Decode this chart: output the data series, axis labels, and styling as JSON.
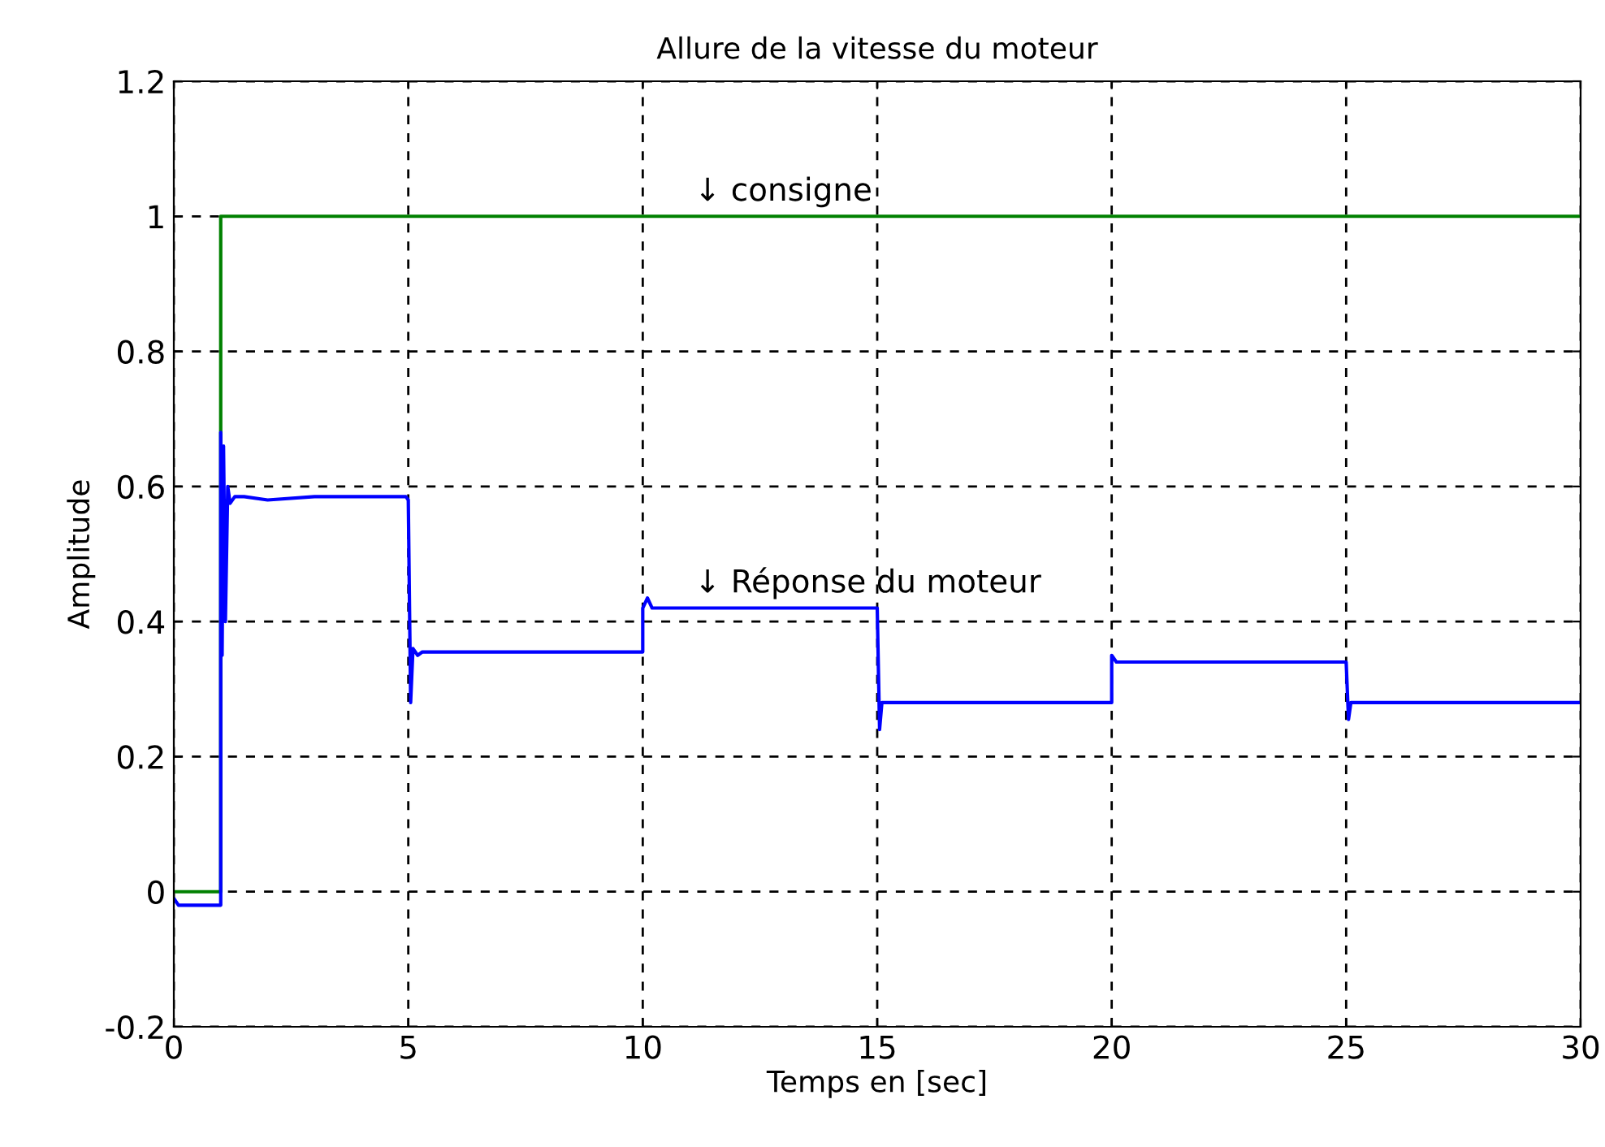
{
  "chart_data": {
    "type": "line",
    "title": "Allure de la vitesse du moteur",
    "xlabel": "Temps en [sec]",
    "ylabel": "Amplitude",
    "xlim": [
      0,
      30
    ],
    "ylim": [
      -0.2,
      1.2
    ],
    "xticks": [
      0,
      5,
      10,
      15,
      20,
      25,
      30
    ],
    "yticks": [
      -0.2,
      0,
      0.2,
      0.4,
      0.6,
      0.8,
      1,
      1.2
    ],
    "grid": true,
    "line_style": "solid",
    "marker": "none",
    "series": [
      {
        "color": "#008000",
        "x": [
          0,
          1,
          1,
          30
        ],
        "values": [
          0,
          0,
          1,
          1
        ]
      },
      {
        "color": "#0000ff",
        "x": [
          0,
          0.1,
          0.2,
          1,
          1,
          1.03,
          1.06,
          1.1,
          1.15,
          1.2,
          1.3,
          1.5,
          2,
          3,
          4,
          4.95,
          5,
          5.05,
          5.1,
          5.2,
          5.3,
          10,
          10,
          10.1,
          10.2,
          10.3,
          14.95,
          15,
          15.05,
          15.1,
          15.2,
          20,
          20,
          20.1,
          20.3,
          25,
          25.05,
          25.1,
          25.2,
          30
        ],
        "values": [
          -0.01,
          -0.02,
          -0.02,
          -0.02,
          0.68,
          0.35,
          0.66,
          0.4,
          0.6,
          0.575,
          0.585,
          0.585,
          0.58,
          0.585,
          0.585,
          0.585,
          0.58,
          0.28,
          0.36,
          0.35,
          0.355,
          0.355,
          0.42,
          0.435,
          0.42,
          0.42,
          0.42,
          0.42,
          0.24,
          0.28,
          0.28,
          0.28,
          0.35,
          0.34,
          0.34,
          0.34,
          0.255,
          0.28,
          0.28,
          0.28
        ]
      }
    ],
    "annotations": [
      {
        "text": "↓ consigne",
        "x": 11.1,
        "y": 1
      },
      {
        "text": "↓ Réponse du moteur",
        "x": 11.1,
        "y": 0.42
      }
    ]
  }
}
